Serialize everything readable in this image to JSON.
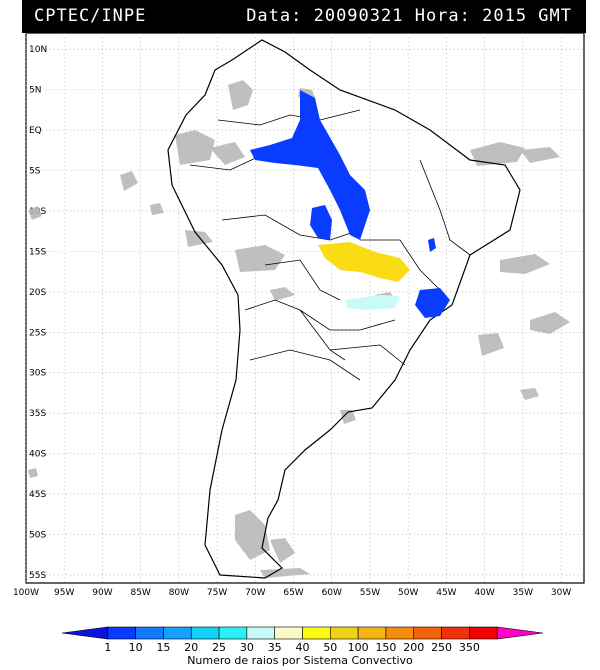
{
  "header": {
    "source": "CPTEC/INPE",
    "datetime": "Data: 20090321 Hora: 2015 GMT"
  },
  "map": {
    "lat_labels": [
      "10N",
      "5N",
      "EQ",
      "5S",
      "10S",
      "15S",
      "20S",
      "25S",
      "30S",
      "35S",
      "40S",
      "45S",
      "50S",
      "55S"
    ],
    "lon_labels": [
      "100W",
      "95W",
      "90W",
      "85W",
      "80W",
      "75W",
      "70W",
      "65W",
      "60W",
      "55W",
      "50W",
      "45W",
      "40W",
      "35W",
      "30W"
    ],
    "grid": true,
    "extent": {
      "lon": [
        -100,
        -27
      ],
      "lat": [
        -56,
        12
      ]
    }
  },
  "legend": {
    "title": "Numero de raios por Sistema Convectivo",
    "ticks": [
      "1",
      "10",
      "15",
      "20",
      "25",
      "30",
      "35",
      "40",
      "50",
      "100",
      "150",
      "200",
      "250",
      "350"
    ],
    "colors": [
      "#0a14e0",
      "#0a3cff",
      "#1478ff",
      "#14a0ff",
      "#14d2f5",
      "#28f0f5",
      "#c8fafa",
      "#fafac8",
      "#fafa14",
      "#f0d214",
      "#f5b414",
      "#f58c0a",
      "#f5640a",
      "#f0320a",
      "#f00000",
      "#ff00c8"
    ]
  },
  "systems": [
    {
      "name": "blue-north",
      "color": "#0a3cff"
    },
    {
      "name": "blue-west",
      "color": "#0a3cff"
    },
    {
      "name": "yellow-central",
      "color": "#fadc14"
    },
    {
      "name": "lightcyan-south",
      "color": "#c8fafa"
    },
    {
      "name": "blue-southeast",
      "color": "#0a3cff"
    }
  ]
}
